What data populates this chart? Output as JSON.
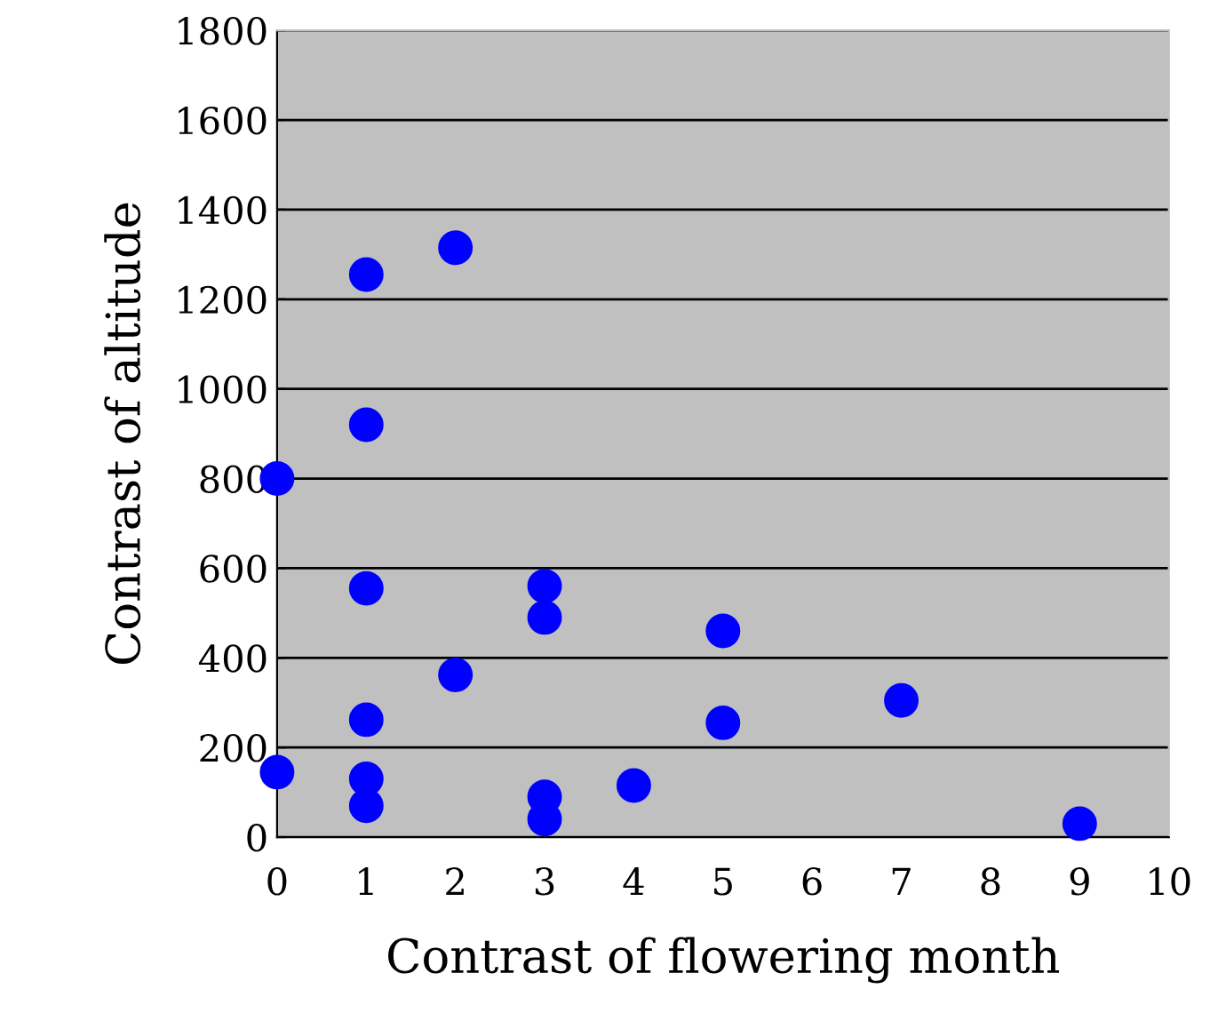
{
  "chart_data": {
    "type": "scatter",
    "xlabel": "Contrast of flowering month",
    "ylabel": "Contrast of altitude",
    "x": [
      0,
      0,
      1,
      1,
      1,
      1,
      1,
      1,
      2,
      2,
      3,
      3,
      3,
      3,
      4,
      5,
      5,
      7,
      9
    ],
    "values": [
      800,
      145,
      1255,
      920,
      555,
      262,
      130,
      70,
      1315,
      362,
      560,
      490,
      90,
      40,
      115,
      460,
      255,
      305,
      30
    ],
    "color": "#0000ff",
    "marker": "circle",
    "xlim": [
      0,
      10
    ],
    "xticks": [
      0,
      1,
      2,
      3,
      4,
      5,
      6,
      7,
      8,
      9,
      10
    ],
    "ylim": [
      0,
      1800
    ],
    "yticks": [
      0,
      200,
      400,
      600,
      800,
      1000,
      1200,
      1400,
      1600,
      1800
    ],
    "grid": "y"
  }
}
